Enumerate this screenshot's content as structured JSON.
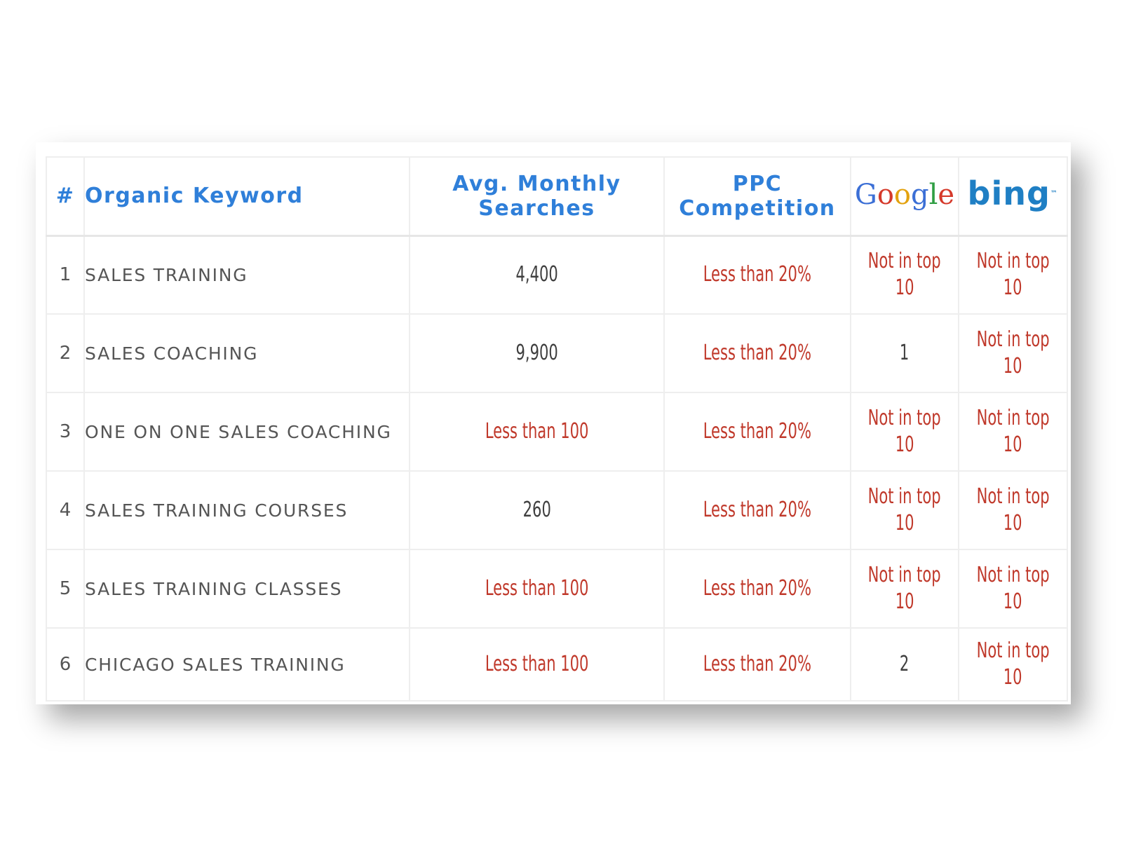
{
  "table": {
    "headers": {
      "num": "#",
      "keyword": "Organic Keyword",
      "searches_line1": "Avg. Monthly",
      "searches_line2": "Searches",
      "ppc_line1": "PPC",
      "ppc_line2": "Competition",
      "google": "Google",
      "bing": "bing"
    },
    "rows": [
      {
        "num": "1",
        "keyword": "SALES TRAINING",
        "searches": "4,400",
        "ppc": "Less than 20%",
        "google_l1": "Not in top",
        "google_l2": "10",
        "bing_l1": "Not in top",
        "bing_l2": "10"
      },
      {
        "num": "2",
        "keyword": "SALES COACHING",
        "searches": "9,900",
        "ppc": "Less than 20%",
        "google_l1": "1",
        "google_l2": "",
        "bing_l1": "Not in top",
        "bing_l2": "10"
      },
      {
        "num": "3",
        "keyword": "ONE ON ONE SALES COACHING",
        "searches": "Less than 100",
        "ppc": "Less than 20%",
        "google_l1": "Not in top",
        "google_l2": "10",
        "bing_l1": "Not in top",
        "bing_l2": "10"
      },
      {
        "num": "4",
        "keyword": "SALES TRAINING COURSES",
        "searches": "260",
        "ppc": "Less than 20%",
        "google_l1": "Not in top",
        "google_l2": "10",
        "bing_l1": "Not in top",
        "bing_l2": "10"
      },
      {
        "num": "5",
        "keyword": "SALES TRAINING CLASSES",
        "searches": "Less than 100",
        "ppc": "Less than 20%",
        "google_l1": "Not in top",
        "google_l2": "10",
        "bing_l1": "Not in top",
        "bing_l2": "10"
      },
      {
        "num": "6",
        "keyword": "CHICAGO SALES TRAINING",
        "searches": "Less than 100",
        "ppc": "Less than 20%",
        "google_l1": "2",
        "google_l2": "",
        "bing_l1": "Not in top",
        "bing_l2": "10"
      }
    ]
  },
  "colors": {
    "header_blue": "#2f7fd9",
    "value_red": "#c0392b",
    "value_dark": "#3f3f3f",
    "text_gray": "#555555"
  }
}
